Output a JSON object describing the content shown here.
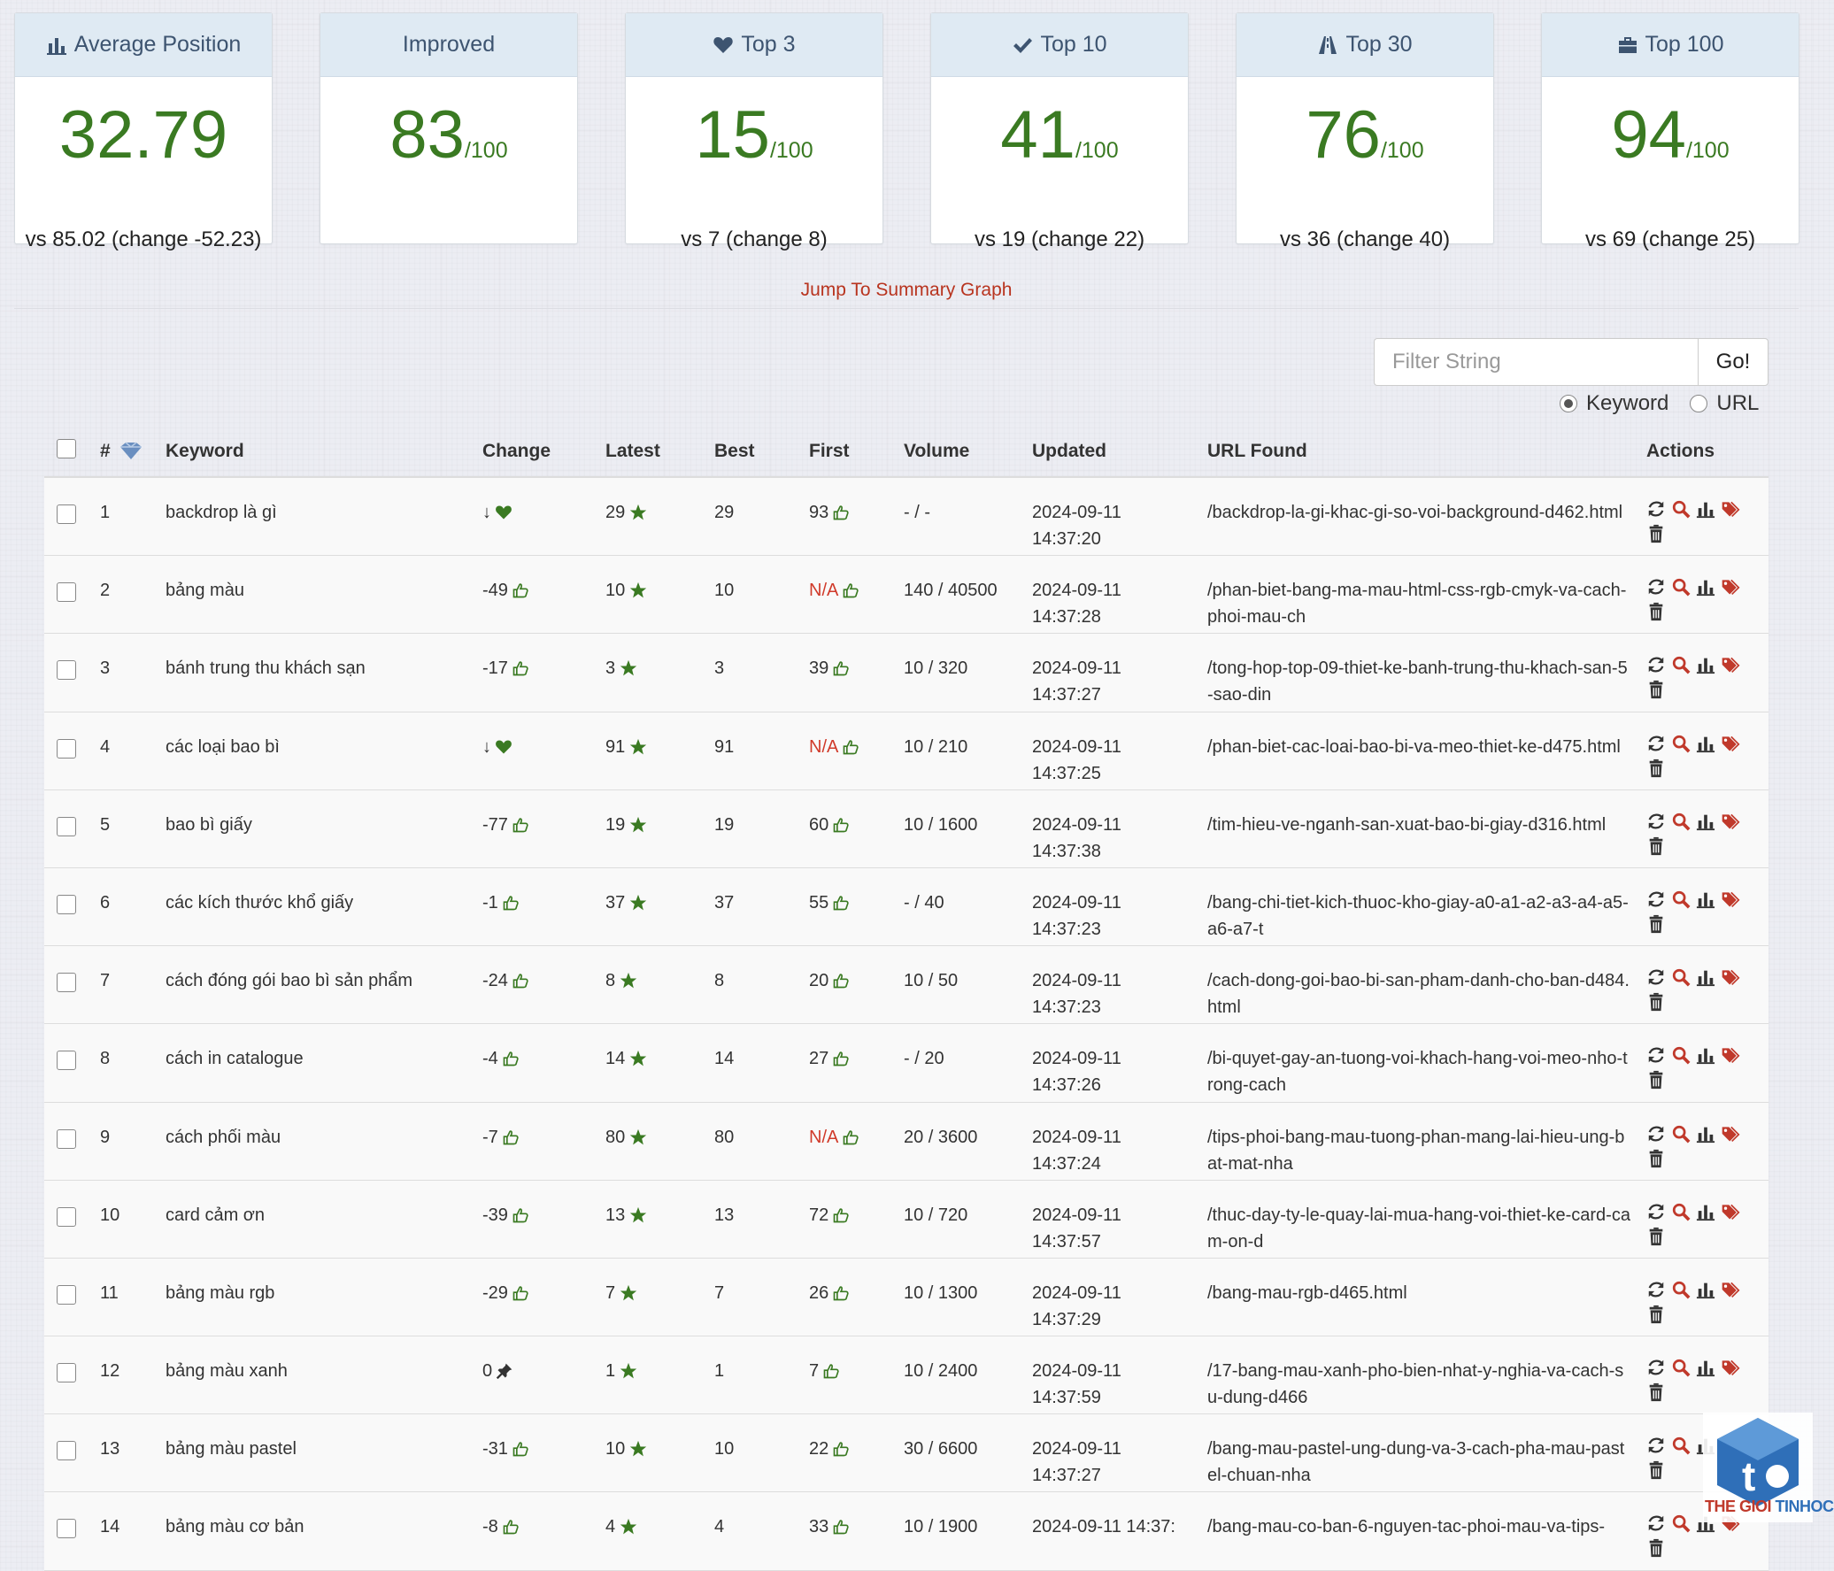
{
  "cards": [
    {
      "icon": "bar-chart-icon",
      "title": "Average Position",
      "value": "32.79",
      "suffix": "",
      "sub": "vs 85.02 (change -52.23)"
    },
    {
      "icon": "",
      "title": "Improved",
      "value": "83",
      "suffix": "/100",
      "sub": ""
    },
    {
      "icon": "heart-icon",
      "title": "Top 3",
      "value": "15",
      "suffix": "/100",
      "sub": "vs 7 (change 8)"
    },
    {
      "icon": "check-icon",
      "title": "Top 10",
      "value": "41",
      "suffix": "/100",
      "sub": "vs 19 (change 22)"
    },
    {
      "icon": "road-icon",
      "title": "Top 30",
      "value": "76",
      "suffix": "/100",
      "sub": "vs 36 (change 40)"
    },
    {
      "icon": "briefcase-icon",
      "title": "Top 100",
      "value": "94",
      "suffix": "/100",
      "sub": "vs 69 (change 25)"
    }
  ],
  "jump_link": "Jump To Summary Graph",
  "filter": {
    "placeholder": "Filter String",
    "go_label": "Go!"
  },
  "radios": [
    {
      "label": "Keyword",
      "checked": true
    },
    {
      "label": "URL",
      "checked": false
    }
  ],
  "columns": {
    "num": "#",
    "keyword": "Keyword",
    "change": "Change",
    "latest": "Latest",
    "best": "Best",
    "first": "First",
    "volume": "Volume",
    "updated": "Updated",
    "url": "URL Found",
    "actions": "Actions"
  },
  "rows": [
    {
      "num": "1",
      "keyword": "backdrop là gì",
      "change": "↓",
      "change_icon": "heart-icon",
      "latest": "29",
      "best": "29",
      "first": "93",
      "first_na": false,
      "volume": "- / -",
      "updated": "2024-09-11 14:37:20",
      "url": "/backdrop-la-gi-khac-gi-so-voi-background-d462.html"
    },
    {
      "num": "2",
      "keyword": "bảng màu",
      "change": "-49",
      "change_icon": "thumbs-up-icon",
      "latest": "10",
      "best": "10",
      "first": "N/A",
      "first_na": true,
      "volume": "140 / 40500",
      "updated": "2024-09-11 14:37:28",
      "url": "/phan-biet-bang-ma-mau-html-css-rgb-cmyk-va-cach-phoi-mau-ch"
    },
    {
      "num": "3",
      "keyword": "bánh trung thu khách sạn",
      "change": "-17",
      "change_icon": "thumbs-up-icon",
      "latest": "3",
      "best": "3",
      "first": "39",
      "first_na": false,
      "volume": "10 / 320",
      "updated": "2024-09-11 14:37:27",
      "url": "/tong-hop-top-09-thiet-ke-banh-trung-thu-khach-san-5-sao-din"
    },
    {
      "num": "4",
      "keyword": "các loại bao bì",
      "change": "↓",
      "change_icon": "heart-icon",
      "latest": "91",
      "best": "91",
      "first": "N/A",
      "first_na": true,
      "volume": "10 / 210",
      "updated": "2024-09-11 14:37:25",
      "url": "/phan-biet-cac-loai-bao-bi-va-meo-thiet-ke-d475.html"
    },
    {
      "num": "5",
      "keyword": "bao bì giấy",
      "change": "-77",
      "change_icon": "thumbs-up-icon",
      "latest": "19",
      "best": "19",
      "first": "60",
      "first_na": false,
      "volume": "10 / 1600",
      "updated": "2024-09-11 14:37:38",
      "url": "/tim-hieu-ve-nganh-san-xuat-bao-bi-giay-d316.html"
    },
    {
      "num": "6",
      "keyword": "các kích thước khổ giấy",
      "change": "-1",
      "change_icon": "thumbs-up-icon",
      "latest": "37",
      "best": "37",
      "first": "55",
      "first_na": false,
      "volume": "- / 40",
      "updated": "2024-09-11 14:37:23",
      "url": "/bang-chi-tiet-kich-thuoc-kho-giay-a0-a1-a2-a3-a4-a5-a6-a7-t"
    },
    {
      "num": "7",
      "keyword": "cách đóng gói bao bì sản phẩm",
      "change": "-24",
      "change_icon": "thumbs-up-icon",
      "latest": "8",
      "best": "8",
      "first": "20",
      "first_na": false,
      "volume": "10 / 50",
      "updated": "2024-09-11 14:37:23",
      "url": "/cach-dong-goi-bao-bi-san-pham-danh-cho-ban-d484.html"
    },
    {
      "num": "8",
      "keyword": "cách in catalogue",
      "change": "-4",
      "change_icon": "thumbs-up-icon",
      "latest": "14",
      "best": "14",
      "first": "27",
      "first_na": false,
      "volume": "- / 20",
      "updated": "2024-09-11 14:37:26",
      "url": "/bi-quyet-gay-an-tuong-voi-khach-hang-voi-meo-nho-trong-cach"
    },
    {
      "num": "9",
      "keyword": "cách phối màu",
      "change": "-7",
      "change_icon": "thumbs-up-icon",
      "latest": "80",
      "best": "80",
      "first": "N/A",
      "first_na": true,
      "volume": "20 / 3600",
      "updated": "2024-09-11 14:37:24",
      "url": "/tips-phoi-bang-mau-tuong-phan-mang-lai-hieu-ung-bat-mat-nha"
    },
    {
      "num": "10",
      "keyword": "card cảm ơn",
      "change": "-39",
      "change_icon": "thumbs-up-icon",
      "latest": "13",
      "best": "13",
      "first": "72",
      "first_na": false,
      "volume": "10 / 720",
      "updated": "2024-09-11 14:37:57",
      "url": "/thuc-day-ty-le-quay-lai-mua-hang-voi-thiet-ke-card-cam-on-d"
    },
    {
      "num": "11",
      "keyword": "bảng màu rgb",
      "change": "-29",
      "change_icon": "thumbs-up-icon",
      "latest": "7",
      "best": "7",
      "first": "26",
      "first_na": false,
      "volume": "10 / 1300",
      "updated": "2024-09-11 14:37:29",
      "url": "/bang-mau-rgb-d465.html"
    },
    {
      "num": "12",
      "keyword": "bảng màu xanh",
      "change": "0",
      "change_icon": "pin-icon",
      "latest": "1",
      "best": "1",
      "first": "7",
      "first_na": false,
      "volume": "10 / 2400",
      "updated": "2024-09-11 14:37:59",
      "url": "/17-bang-mau-xanh-pho-bien-nhat-y-nghia-va-cach-su-dung-d466"
    },
    {
      "num": "13",
      "keyword": "bảng màu pastel",
      "change": "-31",
      "change_icon": "thumbs-up-icon",
      "latest": "10",
      "best": "10",
      "first": "22",
      "first_na": false,
      "volume": "30 / 6600",
      "updated": "2024-09-11 14:37:27",
      "url": "/bang-mau-pastel-ung-dung-va-3-cach-pha-mau-pastel-chuan-nha"
    },
    {
      "num": "14",
      "keyword": "bảng màu cơ bản",
      "change": "-8",
      "change_icon": "thumbs-up-icon",
      "latest": "4",
      "best": "4",
      "first": "33",
      "first_na": false,
      "volume": "10 / 1900",
      "updated": "2024-09-11 14:37:",
      "url": "/bang-mau-co-ban-6-nguyen-tac-phoi-mau-va-tips-"
    }
  ],
  "watermark": {
    "text_red": "THE GIOI ",
    "text_blue": "TINHOC"
  },
  "colors": {
    "green": "#3a7a22",
    "na_red": "#d03a2a",
    "link_red": "#b8341f",
    "card_head": "#dfeaf3",
    "tag_red": "#c0392b"
  }
}
